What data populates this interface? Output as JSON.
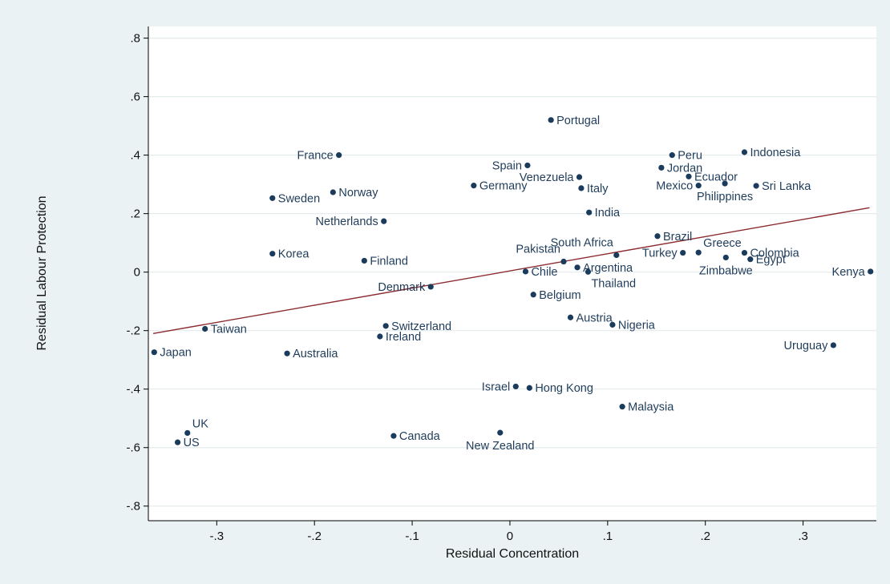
{
  "chart_data": {
    "type": "scatter",
    "title": "",
    "xlabel": "Residual Concentration",
    "ylabel": "Residual Labour Protection",
    "xlim": [
      -0.37,
      0.375
    ],
    "ylim": [
      -0.85,
      0.84
    ],
    "x_ticks": [
      {
        "v": -0.3,
        "label": "-.3"
      },
      {
        "v": -0.2,
        "label": "-.2"
      },
      {
        "v": -0.1,
        "label": "-.1"
      },
      {
        "v": 0,
        "label": "0"
      },
      {
        "v": 0.1,
        "label": ".1"
      },
      {
        "v": 0.2,
        "label": ".2"
      },
      {
        "v": 0.3,
        "label": ".3"
      }
    ],
    "y_ticks": [
      {
        "v": 0.8,
        "label": ".8"
      },
      {
        "v": 0.6,
        "label": ".6"
      },
      {
        "v": 0.4,
        "label": ".4"
      },
      {
        "v": 0.2,
        "label": ".2"
      },
      {
        "v": 0,
        "label": "0"
      },
      {
        "v": -0.2,
        "label": "-.2"
      },
      {
        "v": -0.4,
        "label": "-.4"
      },
      {
        "v": -0.6,
        "label": "-.6"
      },
      {
        "v": -0.8,
        "label": "-.8"
      }
    ],
    "grid": "horizontal",
    "marker_color": "#1a3b5c",
    "fit_line_color": "#8b2b30",
    "fit_line": {
      "x": [
        -0.365,
        0.368
      ],
      "y": [
        -0.21,
        0.22
      ]
    },
    "points": [
      {
        "label": "Portugal",
        "x": 0.042,
        "y": 0.52,
        "pos": "right"
      },
      {
        "label": "France",
        "x": -0.175,
        "y": 0.4,
        "pos": "left"
      },
      {
        "label": "Peru",
        "x": 0.166,
        "y": 0.4,
        "pos": "right"
      },
      {
        "label": "Indonesia",
        "x": 0.24,
        "y": 0.41,
        "pos": "right"
      },
      {
        "label": "Spain",
        "x": 0.018,
        "y": 0.365,
        "pos": "left"
      },
      {
        "label": "Jordan",
        "x": 0.155,
        "y": 0.357,
        "pos": "right"
      },
      {
        "label": "Venezuela",
        "x": 0.071,
        "y": 0.325,
        "pos": "left"
      },
      {
        "label": "Ecuador",
        "x": 0.183,
        "y": 0.327,
        "pos": "right"
      },
      {
        "label": "Germany",
        "x": -0.037,
        "y": 0.296,
        "pos": "right"
      },
      {
        "label": "Italy",
        "x": 0.073,
        "y": 0.287,
        "pos": "right"
      },
      {
        "label": "Mexico",
        "x": 0.193,
        "y": 0.296,
        "pos": "left"
      },
      {
        "label": "Philippines",
        "x": 0.22,
        "y": 0.303,
        "pos": "below"
      },
      {
        "label": "Sri Lanka",
        "x": 0.252,
        "y": 0.295,
        "pos": "right"
      },
      {
        "label": "Norway",
        "x": -0.181,
        "y": 0.273,
        "pos": "right"
      },
      {
        "label": "Sweden",
        "x": -0.243,
        "y": 0.253,
        "pos": "right"
      },
      {
        "label": "India",
        "x": 0.081,
        "y": 0.204,
        "pos": "right"
      },
      {
        "label": "Netherlands",
        "x": -0.129,
        "y": 0.174,
        "pos": "left"
      },
      {
        "label": "Brazil",
        "x": 0.151,
        "y": 0.123,
        "pos": "right"
      },
      {
        "label": "Greece",
        "x": 0.193,
        "y": 0.067,
        "pos": "above-right"
      },
      {
        "label": "Colombia",
        "x": 0.24,
        "y": 0.066,
        "pos": "right"
      },
      {
        "label": "Korea",
        "x": -0.243,
        "y": 0.063,
        "pos": "right"
      },
      {
        "label": "Turkey",
        "x": 0.177,
        "y": 0.066,
        "pos": "left"
      },
      {
        "label": "South Africa",
        "x": 0.109,
        "y": 0.058,
        "pos": "above-left"
      },
      {
        "label": "Zimbabwe",
        "x": 0.221,
        "y": 0.05,
        "pos": "below"
      },
      {
        "label": "Egypt",
        "x": 0.246,
        "y": 0.044,
        "pos": "right"
      },
      {
        "label": "Finland",
        "x": -0.149,
        "y": 0.039,
        "pos": "right"
      },
      {
        "label": "Pakistan",
        "x": 0.055,
        "y": 0.036,
        "pos": "above-left"
      },
      {
        "label": "Argentina",
        "x": 0.069,
        "y": 0.016,
        "pos": "right"
      },
      {
        "label": "Chile",
        "x": 0.016,
        "y": 0.002,
        "pos": "right"
      },
      {
        "label": "Thailand",
        "x": 0.08,
        "y": 0.001,
        "pos": "below-right"
      },
      {
        "label": "Kenya",
        "x": 0.369,
        "y": 0.002,
        "pos": "left"
      },
      {
        "label": "Denmark",
        "x": -0.081,
        "y": -0.05,
        "pos": "left"
      },
      {
        "label": "Belgium",
        "x": 0.024,
        "y": -0.077,
        "pos": "right"
      },
      {
        "label": "Austria",
        "x": 0.062,
        "y": -0.155,
        "pos": "right"
      },
      {
        "label": "Nigeria",
        "x": 0.105,
        "y": -0.18,
        "pos": "right"
      },
      {
        "label": "Switzerland",
        "x": -0.127,
        "y": -0.184,
        "pos": "right"
      },
      {
        "label": "Taiwan",
        "x": -0.312,
        "y": -0.194,
        "pos": "right"
      },
      {
        "label": "Ireland",
        "x": -0.133,
        "y": -0.22,
        "pos": "right"
      },
      {
        "label": "Uruguay",
        "x": 0.331,
        "y": -0.25,
        "pos": "left"
      },
      {
        "label": "Japan",
        "x": -0.364,
        "y": -0.274,
        "pos": "right"
      },
      {
        "label": "Australia",
        "x": -0.228,
        "y": -0.278,
        "pos": "right"
      },
      {
        "label": "Israel",
        "x": 0.006,
        "y": -0.391,
        "pos": "left"
      },
      {
        "label": "Hong Kong",
        "x": 0.02,
        "y": -0.396,
        "pos": "right"
      },
      {
        "label": "Malaysia",
        "x": 0.115,
        "y": -0.46,
        "pos": "right"
      },
      {
        "label": "UK",
        "x": -0.33,
        "y": -0.55,
        "pos": "above-right"
      },
      {
        "label": "Canada",
        "x": -0.119,
        "y": -0.56,
        "pos": "right"
      },
      {
        "label": "New Zealand",
        "x": -0.01,
        "y": -0.549,
        "pos": "below"
      },
      {
        "label": "US",
        "x": -0.34,
        "y": -0.582,
        "pos": "right"
      }
    ]
  }
}
